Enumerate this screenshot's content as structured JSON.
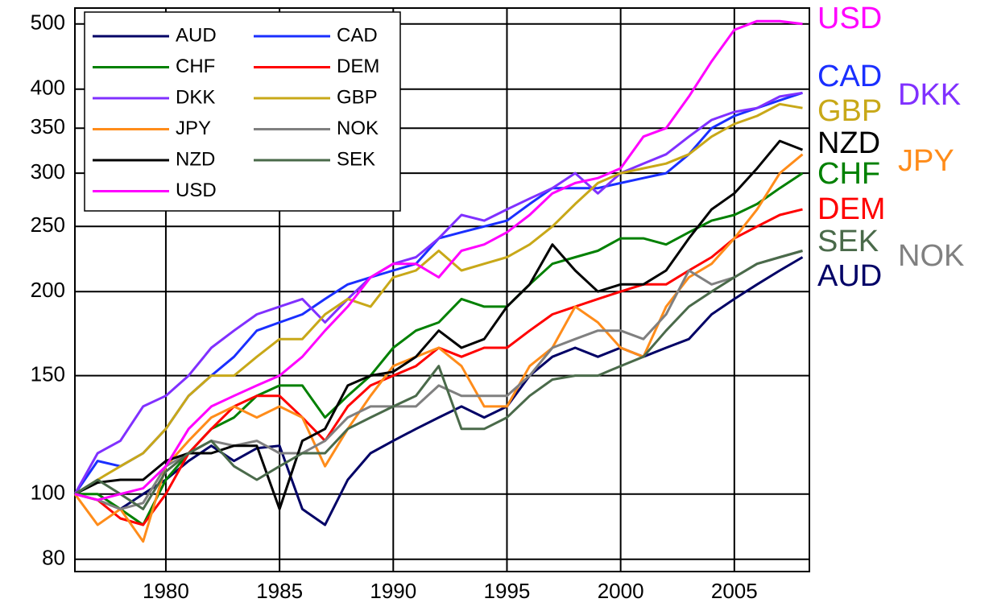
{
  "chart_data": {
    "type": "line",
    "yscale": "log",
    "grid": true,
    "legend": "upper left",
    "x": [
      1976,
      1977,
      1978,
      1979,
      1980,
      1981,
      1982,
      1983,
      1984,
      1985,
      1986,
      1987,
      1988,
      1989,
      1990,
      1991,
      1992,
      1993,
      1994,
      1995,
      1996,
      1997,
      1998,
      1999,
      2000,
      2001,
      2002,
      2003,
      2004,
      2005,
      2006,
      2007,
      2008
    ],
    "xlim": [
      1976,
      2008.3
    ],
    "xticks": [
      1980,
      1985,
      1990,
      1995,
      2000,
      2005
    ],
    "ylim": [
      76.7,
      528
    ],
    "yticks": [
      80,
      100,
      150,
      200,
      250,
      300,
      350,
      400,
      500
    ],
    "series": [
      {
        "name": "AUD",
        "color": "#000066",
        "values": [
          100,
          98,
          95,
          100,
          105,
          112,
          118,
          112,
          117,
          118,
          95,
          90,
          105,
          115,
          120,
          125,
          130,
          135,
          130,
          135,
          150,
          160,
          165,
          160,
          165,
          160,
          165,
          170,
          185,
          195,
          205,
          215,
          225
        ]
      },
      {
        "name": "CAD",
        "color": "#1a2fff",
        "values": [
          100,
          112,
          110,
          115,
          125,
          140,
          150,
          160,
          175,
          180,
          185,
          195,
          205,
          210,
          215,
          220,
          240,
          245,
          250,
          255,
          270,
          285,
          285,
          285,
          290,
          295,
          300,
          320,
          350,
          365,
          375,
          385,
          395
        ]
      },
      {
        "name": "CHF",
        "color": "#008000",
        "values": [
          100,
          100,
          95,
          90,
          105,
          115,
          125,
          130,
          140,
          145,
          145,
          130,
          140,
          150,
          165,
          175,
          180,
          195,
          190,
          190,
          205,
          220,
          225,
          230,
          240,
          240,
          235,
          245,
          255,
          260,
          270,
          285,
          300
        ]
      },
      {
        "name": "DEM",
        "color": "#ff0000",
        "values": [
          100,
          98,
          92,
          90,
          100,
          115,
          125,
          135,
          140,
          140,
          130,
          120,
          135,
          145,
          150,
          155,
          165,
          160,
          165,
          165,
          175,
          185,
          190,
          195,
          200,
          205,
          205,
          215,
          225,
          240,
          250,
          260,
          265
        ]
      },
      {
        "name": "DKK",
        "color": "#8030ff",
        "values": [
          100,
          115,
          120,
          135,
          140,
          150,
          165,
          175,
          185,
          190,
          195,
          180,
          195,
          210,
          220,
          225,
          240,
          260,
          255,
          265,
          275,
          285,
          300,
          280,
          300,
          310,
          320,
          340,
          360,
          370,
          375,
          390,
          395
        ]
      },
      {
        "name": "GBP",
        "color": "#c8a818",
        "values": [
          100,
          105,
          110,
          115,
          125,
          140,
          150,
          150,
          160,
          170,
          170,
          185,
          195,
          190,
          210,
          215,
          230,
          215,
          220,
          225,
          235,
          250,
          270,
          290,
          300,
          305,
          310,
          320,
          340,
          355,
          365,
          380,
          375
        ]
      },
      {
        "name": "JPY",
        "color": "#ff8c1a",
        "values": [
          100,
          90,
          95,
          85,
          110,
          120,
          130,
          135,
          130,
          135,
          130,
          110,
          125,
          140,
          155,
          160,
          165,
          155,
          135,
          135,
          155,
          165,
          190,
          180,
          165,
          160,
          190,
          210,
          220,
          240,
          265,
          300,
          320
        ]
      },
      {
        "name": "NOK",
        "color": "#808080",
        "values": [
          100,
          98,
          95,
          97,
          110,
          115,
          120,
          118,
          120,
          115,
          115,
          120,
          130,
          135,
          135,
          135,
          145,
          140,
          140,
          140,
          150,
          165,
          170,
          175,
          175,
          170,
          185,
          215,
          205,
          210,
          220,
          225,
          230
        ]
      },
      {
        "name": "NZD",
        "color": "#000000",
        "values": [
          100,
          104,
          105,
          105,
          112,
          115,
          115,
          118,
          118,
          95,
          120,
          125,
          145,
          150,
          152,
          160,
          175,
          165,
          170,
          190,
          205,
          235,
          215,
          200,
          205,
          205,
          215,
          240,
          265,
          280,
          305,
          335,
          325
        ]
      },
      {
        "name": "SEK",
        "color": "#4a6a4a",
        "values": [
          100,
          105,
          100,
          95,
          108,
          115,
          120,
          110,
          105,
          110,
          115,
          115,
          125,
          130,
          135,
          140,
          155,
          125,
          125,
          130,
          140,
          148,
          150,
          150,
          155,
          160,
          175,
          190,
          200,
          210,
          220,
          225,
          230
        ]
      },
      {
        "name": "USD",
        "color": "#ff00ff",
        "values": [
          100,
          98,
          100,
          102,
          110,
          125,
          135,
          140,
          145,
          150,
          160,
          175,
          190,
          210,
          220,
          220,
          210,
          230,
          235,
          245,
          260,
          280,
          290,
          295,
          305,
          340,
          350,
          390,
          440,
          490,
          505,
          505,
          500
        ]
      }
    ]
  }
}
